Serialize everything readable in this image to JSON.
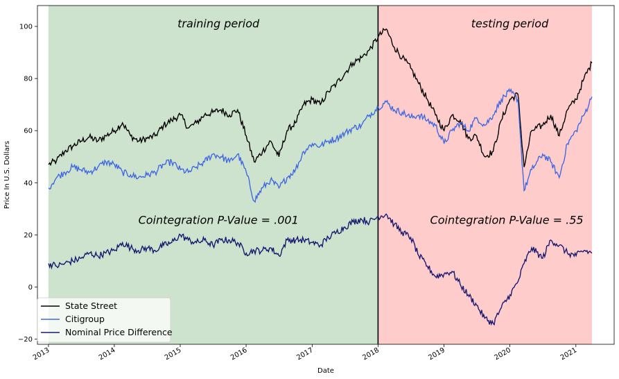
{
  "chart_data": {
    "type": "line",
    "xlabel": "Date",
    "ylabel": "Price In U.S. Dollars",
    "xlim": [
      "2012-11-01",
      "2021-08-01"
    ],
    "ylim": [
      -22,
      108
    ],
    "x_ticks": [
      "2013",
      "2014",
      "2015",
      "2016",
      "2017",
      "2018",
      "2019",
      "2020",
      "2021"
    ],
    "y_ticks": [
      -20,
      0,
      20,
      40,
      60,
      80,
      100
    ],
    "grid": false,
    "legend_position": "lower-left",
    "regions": [
      {
        "name": "training",
        "start": "2013-01-01",
        "end": "2018-01-01",
        "color": "#cde3cd"
      },
      {
        "name": "testing",
        "start": "2018-01-01",
        "end": "2021-03-31",
        "color": "#ffcccc"
      }
    ],
    "split_line": "2018-01-01",
    "annotations": [
      {
        "text": "training period",
        "x": "2015-08-01",
        "y": 101
      },
      {
        "text": "testing period",
        "x": "2020-01-01",
        "y": 101
      },
      {
        "text": "Cointegration P-Value = .001",
        "x": "2015-08-01",
        "y": 25.5
      },
      {
        "text": "Cointegration P-Value = .55",
        "x": "2019-12-15",
        "y": 25.5
      }
    ],
    "series": [
      {
        "name": "State Street",
        "color": "#000000",
        "points": [
          [
            "2013-01-02",
            47
          ],
          [
            "2013-02-15",
            48.5
          ],
          [
            "2013-04-01",
            52
          ],
          [
            "2013-05-15",
            54
          ],
          [
            "2013-07-01",
            56
          ],
          [
            "2013-08-15",
            57.5
          ],
          [
            "2013-10-01",
            56
          ],
          [
            "2013-11-15",
            58
          ],
          [
            "2014-01-02",
            60
          ],
          [
            "2014-02-15",
            63
          ],
          [
            "2014-04-01",
            58
          ],
          [
            "2014-05-15",
            56
          ],
          [
            "2014-07-01",
            57
          ],
          [
            "2014-08-15",
            58
          ],
          [
            "2014-10-01",
            62
          ],
          [
            "2014-11-15",
            64
          ],
          [
            "2015-01-02",
            66
          ],
          [
            "2015-02-15",
            61
          ],
          [
            "2015-04-01",
            63
          ],
          [
            "2015-05-15",
            66
          ],
          [
            "2015-07-01",
            67
          ],
          [
            "2015-08-15",
            68
          ],
          [
            "2015-10-01",
            66
          ],
          [
            "2015-11-15",
            68
          ],
          [
            "2016-01-02",
            58
          ],
          [
            "2016-02-15",
            48
          ],
          [
            "2016-04-01",
            52
          ],
          [
            "2016-05-15",
            56
          ],
          [
            "2016-07-01",
            50
          ],
          [
            "2016-08-15",
            60
          ],
          [
            "2016-10-01",
            63
          ],
          [
            "2016-11-15",
            70
          ],
          [
            "2017-01-02",
            72
          ],
          [
            "2017-02-15",
            70
          ],
          [
            "2017-04-01",
            75
          ],
          [
            "2017-05-15",
            78
          ],
          [
            "2017-07-01",
            82
          ],
          [
            "2017-08-15",
            86
          ],
          [
            "2017-10-01",
            88
          ],
          [
            "2017-11-15",
            91
          ],
          [
            "2018-01-02",
            96
          ],
          [
            "2018-02-15",
            99
          ],
          [
            "2018-04-01",
            92
          ],
          [
            "2018-05-15",
            88
          ],
          [
            "2018-07-01",
            84
          ],
          [
            "2018-08-15",
            78
          ],
          [
            "2018-10-01",
            72
          ],
          [
            "2018-11-15",
            66
          ],
          [
            "2019-01-02",
            60
          ],
          [
            "2019-02-15",
            66
          ],
          [
            "2019-04-01",
            64
          ],
          [
            "2019-05-15",
            57
          ],
          [
            "2019-07-01",
            58
          ],
          [
            "2019-08-15",
            50
          ],
          [
            "2019-10-01",
            52
          ],
          [
            "2019-11-15",
            64
          ],
          [
            "2020-01-02",
            72
          ],
          [
            "2020-02-15",
            74
          ],
          [
            "2020-03-20",
            46
          ],
          [
            "2020-05-01",
            60
          ],
          [
            "2020-07-01",
            62
          ],
          [
            "2020-08-15",
            66
          ],
          [
            "2020-10-01",
            58
          ],
          [
            "2020-11-15",
            68
          ],
          [
            "2021-01-02",
            72
          ],
          [
            "2021-02-15",
            80
          ],
          [
            "2021-03-31",
            86
          ]
        ]
      },
      {
        "name": "Citigroup",
        "color": "#4169e1",
        "points": [
          [
            "2013-01-02",
            38
          ],
          [
            "2013-02-15",
            42
          ],
          [
            "2013-04-01",
            44
          ],
          [
            "2013-05-15",
            46
          ],
          [
            "2013-07-01",
            45
          ],
          [
            "2013-08-15",
            44
          ],
          [
            "2013-10-01",
            46
          ],
          [
            "2013-11-15",
            48
          ],
          [
            "2014-01-02",
            47
          ],
          [
            "2014-02-15",
            44
          ],
          [
            "2014-04-01",
            43
          ],
          [
            "2014-05-15",
            42
          ],
          [
            "2014-07-01",
            43
          ],
          [
            "2014-08-15",
            44
          ],
          [
            "2014-10-01",
            47
          ],
          [
            "2014-11-15",
            48
          ],
          [
            "2015-01-02",
            45
          ],
          [
            "2015-02-15",
            44
          ],
          [
            "2015-04-01",
            46
          ],
          [
            "2015-05-15",
            48
          ],
          [
            "2015-07-01",
            51
          ],
          [
            "2015-08-15",
            50
          ],
          [
            "2015-10-01",
            48
          ],
          [
            "2015-11-15",
            51
          ],
          [
            "2016-01-02",
            44
          ],
          [
            "2016-02-15",
            33
          ],
          [
            "2016-04-01",
            38
          ],
          [
            "2016-05-15",
            41
          ],
          [
            "2016-07-01",
            38
          ],
          [
            "2016-08-15",
            42
          ],
          [
            "2016-10-01",
            45
          ],
          [
            "2016-11-15",
            52
          ],
          [
            "2017-01-02",
            55
          ],
          [
            "2017-02-15",
            54
          ],
          [
            "2017-04-01",
            56
          ],
          [
            "2017-05-15",
            57
          ],
          [
            "2017-07-01",
            59
          ],
          [
            "2017-08-15",
            61
          ],
          [
            "2017-10-01",
            62
          ],
          [
            "2017-11-15",
            66
          ],
          [
            "2018-01-02",
            69
          ],
          [
            "2018-02-15",
            71
          ],
          [
            "2018-04-01",
            68
          ],
          [
            "2018-05-15",
            67
          ],
          [
            "2018-07-01",
            65
          ],
          [
            "2018-08-15",
            66
          ],
          [
            "2018-10-01",
            64
          ],
          [
            "2018-11-15",
            62
          ],
          [
            "2019-01-02",
            55
          ],
          [
            "2019-02-15",
            60
          ],
          [
            "2019-04-01",
            63
          ],
          [
            "2019-05-15",
            60
          ],
          [
            "2019-07-01",
            65
          ],
          [
            "2019-08-15",
            62
          ],
          [
            "2019-10-01",
            66
          ],
          [
            "2019-11-15",
            72
          ],
          [
            "2020-01-02",
            75
          ],
          [
            "2020-02-15",
            72
          ],
          [
            "2020-03-20",
            37
          ],
          [
            "2020-05-01",
            45
          ],
          [
            "2020-07-01",
            51
          ],
          [
            "2020-08-15",
            48
          ],
          [
            "2020-10-01",
            42
          ],
          [
            "2020-11-15",
            55
          ],
          [
            "2021-01-02",
            60
          ],
          [
            "2021-02-15",
            66
          ],
          [
            "2021-03-31",
            73
          ]
        ]
      },
      {
        "name": "Nominal Price Difference",
        "color": "#191970",
        "points": [
          [
            "2013-01-02",
            9
          ],
          [
            "2013-02-15",
            8
          ],
          [
            "2013-04-01",
            9
          ],
          [
            "2013-05-15",
            10
          ],
          [
            "2013-07-01",
            11
          ],
          [
            "2013-08-15",
            13
          ],
          [
            "2013-10-01",
            12
          ],
          [
            "2013-11-15",
            13
          ],
          [
            "2014-01-02",
            14
          ],
          [
            "2014-02-15",
            17
          ],
          [
            "2014-04-01",
            15
          ],
          [
            "2014-05-15",
            14
          ],
          [
            "2014-07-01",
            15
          ],
          [
            "2014-08-15",
            14
          ],
          [
            "2014-10-01",
            16
          ],
          [
            "2014-11-15",
            17
          ],
          [
            "2015-01-02",
            20
          ],
          [
            "2015-02-15",
            18
          ],
          [
            "2015-04-01",
            17
          ],
          [
            "2015-05-15",
            18
          ],
          [
            "2015-07-01",
            16
          ],
          [
            "2015-08-15",
            18
          ],
          [
            "2015-10-01",
            18
          ],
          [
            "2015-11-15",
            17
          ],
          [
            "2016-01-02",
            13
          ],
          [
            "2016-02-15",
            14
          ],
          [
            "2016-04-01",
            14
          ],
          [
            "2016-05-15",
            15
          ],
          [
            "2016-07-01",
            12
          ],
          [
            "2016-08-15",
            18
          ],
          [
            "2016-10-01",
            18
          ],
          [
            "2016-11-15",
            18
          ],
          [
            "2017-01-02",
            17
          ],
          [
            "2017-02-15",
            16
          ],
          [
            "2017-04-01",
            19
          ],
          [
            "2017-05-15",
            21
          ],
          [
            "2017-07-01",
            23
          ],
          [
            "2017-08-15",
            25
          ],
          [
            "2017-10-01",
            26
          ],
          [
            "2017-11-15",
            25
          ],
          [
            "2018-01-02",
            27
          ],
          [
            "2018-02-15",
            28
          ],
          [
            "2018-04-01",
            24
          ],
          [
            "2018-05-15",
            21
          ],
          [
            "2018-07-01",
            19
          ],
          [
            "2018-08-15",
            12
          ],
          [
            "2018-10-01",
            8
          ],
          [
            "2018-11-15",
            4
          ],
          [
            "2019-01-02",
            5
          ],
          [
            "2019-02-15",
            6
          ],
          [
            "2019-04-01",
            1
          ],
          [
            "2019-05-15",
            -3
          ],
          [
            "2019-07-01",
            -7
          ],
          [
            "2019-08-15",
            -12
          ],
          [
            "2019-10-01",
            -14
          ],
          [
            "2019-11-15",
            -8
          ],
          [
            "2020-01-02",
            -3
          ],
          [
            "2020-02-15",
            2
          ],
          [
            "2020-03-20",
            9
          ],
          [
            "2020-05-01",
            15
          ],
          [
            "2020-07-01",
            11
          ],
          [
            "2020-08-15",
            18
          ],
          [
            "2020-10-01",
            16
          ],
          [
            "2020-11-15",
            13
          ],
          [
            "2021-01-02",
            12
          ],
          [
            "2021-02-15",
            14
          ],
          [
            "2021-03-31",
            13
          ]
        ]
      }
    ]
  }
}
